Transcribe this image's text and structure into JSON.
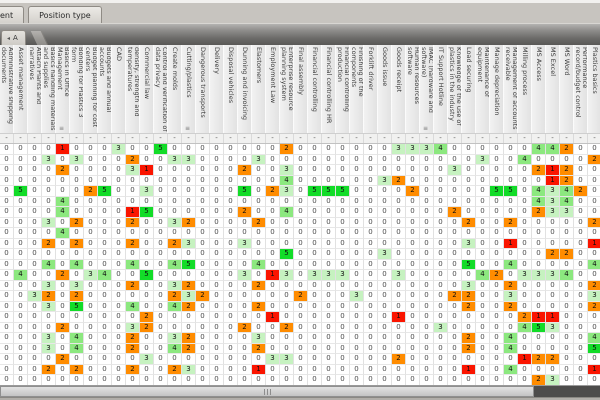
{
  "tabs": [
    {
      "label": "ent"
    },
    {
      "label": "Position type"
    }
  ],
  "corner_tab": {
    "icon": "◂",
    "label": "A"
  },
  "grid": {
    "columns": [
      "Administrative shipping documents",
      "Asset management",
      "Attach Plants and narratives",
      "Basics handling materials and supplies",
      "Basics in Office Management",
      "Bonding for Plastics 3 form",
      "Budget planning for cost centers",
      "Budgets and annual accounts",
      "CAD",
      "Chemical resistance, density, strength and temperatures",
      "Commercial law",
      "Control and verification of data privacy",
      "Create molds",
      "Cutting/plastics",
      "Dangerous transports",
      "Delivery",
      "Disposal vehicles",
      "Dunning and invoicing",
      "Elastomers",
      "Employment Law",
      "Enterprise resource planning system",
      "Final assembly",
      "Financial controlling",
      "Financial controlling HR",
      "Financial controlling production",
      "Finishing of the components",
      "Forklift driver",
      "Goods issue",
      "Goods receipt",
      "Human resources software",
      "IMAC (hardware and software)",
      "IT Support Hotline",
      "Knowledge of the use of plastics in the industry",
      "Load securing",
      "Maintenance of equipment",
      "Manage depreciation",
      "Management of accounts receivable",
      "Milling process",
      "MS Access",
      "MS Excel",
      "MS Word",
      "Performance record/budget control",
      "Plastics basics"
    ],
    "header_icon": "≡",
    "header_icon_columns": [
      4,
      13,
      30
    ],
    "filter_symbol": "-",
    "value_colors": {
      "0": "#ffffff",
      "1": "#fa1500",
      "2": "#ff8c00",
      "3": "#c6f2c0",
      "4": "#8ce87f",
      "5": "#12dc28"
    },
    "rows": [
      [
        0,
        0,
        0,
        0,
        1,
        0,
        0,
        0,
        3,
        0,
        0,
        5,
        0,
        0,
        0,
        0,
        0,
        0,
        0,
        0,
        2,
        0,
        0,
        0,
        0,
        0,
        0,
        0,
        3,
        3,
        3,
        4,
        0,
        0,
        0,
        0,
        0,
        0,
        4,
        4,
        2,
        0,
        0
      ],
      [
        0,
        0,
        0,
        3,
        0,
        3,
        0,
        0,
        0,
        2,
        0,
        0,
        3,
        3,
        0,
        0,
        0,
        0,
        3,
        0,
        0,
        0,
        0,
        0,
        0,
        0,
        0,
        0,
        0,
        0,
        0,
        0,
        0,
        0,
        3,
        0,
        0,
        4,
        0,
        0,
        0,
        0,
        2
      ],
      [
        0,
        0,
        0,
        0,
        2,
        0,
        0,
        0,
        0,
        3,
        1,
        0,
        0,
        0,
        0,
        0,
        0,
        2,
        0,
        0,
        3,
        0,
        0,
        0,
        0,
        0,
        0,
        0,
        0,
        0,
        0,
        0,
        3,
        0,
        0,
        0,
        0,
        0,
        2,
        1,
        2,
        0,
        0
      ],
      [
        0,
        0,
        0,
        0,
        0,
        0,
        0,
        0,
        0,
        0,
        0,
        0,
        0,
        0,
        0,
        0,
        0,
        0,
        0,
        0,
        4,
        0,
        0,
        0,
        0,
        0,
        0,
        3,
        2,
        0,
        0,
        0,
        0,
        0,
        0,
        0,
        0,
        0,
        0,
        1,
        2,
        0,
        0
      ],
      [
        0,
        5,
        0,
        0,
        0,
        0,
        2,
        5,
        0,
        0,
        3,
        0,
        0,
        0,
        0,
        0,
        0,
        5,
        0,
        2,
        3,
        0,
        5,
        5,
        5,
        0,
        0,
        0,
        0,
        2,
        0,
        0,
        0,
        0,
        0,
        5,
        5,
        0,
        4,
        3,
        4,
        2,
        0
      ],
      [
        0,
        0,
        0,
        0,
        4,
        0,
        0,
        0,
        0,
        0,
        0,
        0,
        0,
        0,
        0,
        0,
        0,
        0,
        0,
        0,
        0,
        0,
        0,
        0,
        0,
        0,
        0,
        0,
        0,
        0,
        0,
        0,
        0,
        0,
        0,
        0,
        0,
        0,
        4,
        3,
        4,
        0,
        0
      ],
      [
        0,
        0,
        0,
        0,
        4,
        0,
        0,
        0,
        0,
        1,
        5,
        0,
        0,
        0,
        0,
        0,
        0,
        2,
        0,
        0,
        4,
        0,
        0,
        0,
        0,
        0,
        0,
        0,
        0,
        0,
        0,
        0,
        2,
        0,
        0,
        0,
        0,
        0,
        2,
        3,
        3,
        0,
        0
      ],
      [
        0,
        0,
        0,
        3,
        0,
        2,
        0,
        0,
        0,
        2,
        0,
        0,
        3,
        2,
        0,
        0,
        0,
        0,
        2,
        0,
        0,
        0,
        0,
        0,
        0,
        0,
        0,
        0,
        0,
        0,
        0,
        0,
        0,
        2,
        0,
        0,
        2,
        0,
        0,
        0,
        0,
        0,
        2
      ],
      [
        0,
        0,
        0,
        0,
        4,
        0,
        0,
        0,
        0,
        0,
        0,
        0,
        0,
        0,
        0,
        0,
        0,
        0,
        0,
        0,
        0,
        0,
        0,
        0,
        0,
        0,
        0,
        0,
        0,
        0,
        0,
        0,
        0,
        0,
        0,
        0,
        0,
        0,
        0,
        0,
        0,
        0,
        0
      ],
      [
        0,
        0,
        0,
        2,
        0,
        2,
        0,
        0,
        0,
        2,
        0,
        0,
        2,
        3,
        0,
        0,
        0,
        3,
        0,
        0,
        0,
        0,
        0,
        0,
        0,
        0,
        0,
        0,
        0,
        0,
        0,
        0,
        0,
        3,
        0,
        0,
        1,
        0,
        0,
        0,
        0,
        0,
        1
      ],
      [
        0,
        0,
        0,
        0,
        0,
        0,
        0,
        0,
        0,
        0,
        0,
        0,
        0,
        0,
        0,
        0,
        0,
        0,
        0,
        0,
        5,
        0,
        0,
        0,
        0,
        0,
        0,
        3,
        0,
        0,
        0,
        0,
        0,
        0,
        0,
        0,
        0,
        0,
        0,
        2,
        2,
        0,
        0
      ],
      [
        0,
        0,
        0,
        4,
        0,
        4,
        0,
        0,
        0,
        4,
        0,
        0,
        4,
        5,
        0,
        0,
        0,
        0,
        4,
        0,
        0,
        0,
        0,
        0,
        0,
        0,
        0,
        0,
        0,
        0,
        0,
        0,
        0,
        5,
        0,
        0,
        4,
        0,
        0,
        0,
        0,
        0,
        4
      ],
      [
        0,
        4,
        0,
        0,
        2,
        0,
        3,
        4,
        0,
        0,
        5,
        0,
        0,
        0,
        0,
        0,
        0,
        3,
        0,
        1,
        3,
        0,
        3,
        3,
        3,
        0,
        0,
        0,
        3,
        0,
        0,
        0,
        0,
        0,
        4,
        2,
        0,
        3,
        3,
        3,
        4,
        0,
        0
      ],
      [
        0,
        0,
        0,
        3,
        0,
        3,
        0,
        0,
        0,
        2,
        0,
        0,
        3,
        2,
        0,
        0,
        0,
        0,
        2,
        0,
        0,
        0,
        0,
        0,
        0,
        0,
        0,
        0,
        0,
        0,
        0,
        0,
        0,
        3,
        0,
        0,
        2,
        0,
        0,
        0,
        0,
        0,
        2
      ],
      [
        0,
        0,
        3,
        2,
        0,
        2,
        0,
        0,
        0,
        0,
        0,
        0,
        2,
        3,
        2,
        0,
        0,
        0,
        0,
        0,
        0,
        2,
        0,
        0,
        0,
        3,
        0,
        0,
        0,
        0,
        0,
        0,
        2,
        2,
        0,
        0,
        3,
        0,
        0,
        0,
        0,
        0,
        3
      ],
      [
        0,
        0,
        0,
        3,
        0,
        5,
        0,
        0,
        0,
        4,
        0,
        0,
        4,
        2,
        0,
        0,
        0,
        0,
        2,
        0,
        0,
        0,
        0,
        0,
        0,
        0,
        0,
        0,
        0,
        0,
        0,
        0,
        0,
        2,
        0,
        0,
        2,
        0,
        0,
        0,
        0,
        0,
        2
      ],
      [
        0,
        0,
        0,
        0,
        0,
        0,
        0,
        0,
        0,
        0,
        2,
        0,
        0,
        0,
        0,
        0,
        0,
        0,
        0,
        1,
        0,
        0,
        0,
        0,
        0,
        0,
        0,
        0,
        1,
        0,
        0,
        0,
        0,
        0,
        0,
        0,
        0,
        2,
        1,
        1,
        0,
        0,
        0
      ],
      [
        0,
        0,
        0,
        0,
        2,
        0,
        0,
        0,
        0,
        3,
        2,
        0,
        0,
        0,
        0,
        0,
        0,
        2,
        0,
        0,
        2,
        0,
        0,
        0,
        0,
        0,
        0,
        0,
        0,
        0,
        0,
        3,
        0,
        0,
        0,
        0,
        0,
        4,
        5,
        3,
        0,
        0,
        0
      ],
      [
        0,
        0,
        0,
        3,
        0,
        4,
        0,
        0,
        0,
        2,
        0,
        0,
        3,
        2,
        0,
        0,
        0,
        0,
        3,
        0,
        0,
        0,
        0,
        0,
        0,
        0,
        0,
        0,
        0,
        0,
        0,
        0,
        0,
        2,
        0,
        0,
        4,
        0,
        0,
        0,
        0,
        0,
        4
      ],
      [
        0,
        0,
        0,
        3,
        0,
        4,
        0,
        0,
        0,
        2,
        0,
        0,
        4,
        2,
        0,
        0,
        0,
        0,
        2,
        0,
        0,
        0,
        0,
        0,
        0,
        0,
        0,
        0,
        0,
        0,
        0,
        0,
        0,
        2,
        0,
        0,
        4,
        0,
        0,
        0,
        0,
        0,
        5
      ],
      [
        0,
        0,
        0,
        0,
        2,
        0,
        0,
        0,
        0,
        0,
        3,
        0,
        0,
        0,
        0,
        0,
        0,
        0,
        0,
        3,
        3,
        0,
        0,
        0,
        0,
        0,
        0,
        0,
        2,
        0,
        0,
        0,
        0,
        0,
        0,
        0,
        0,
        1,
        2,
        2,
        0,
        0,
        0
      ],
      [
        0,
        0,
        0,
        2,
        0,
        2,
        0,
        0,
        0,
        2,
        0,
        0,
        2,
        3,
        0,
        0,
        0,
        0,
        1,
        0,
        0,
        0,
        0,
        0,
        0,
        0,
        0,
        0,
        0,
        0,
        0,
        0,
        0,
        1,
        0,
        0,
        4,
        0,
        0,
        0,
        0,
        0,
        1
      ],
      [
        0,
        0,
        0,
        0,
        0,
        0,
        0,
        0,
        0,
        0,
        0,
        0,
        0,
        0,
        0,
        0,
        0,
        0,
        0,
        0,
        0,
        0,
        0,
        0,
        0,
        0,
        0,
        0,
        0,
        0,
        0,
        0,
        0,
        0,
        0,
        0,
        0,
        0,
        2,
        3,
        0,
        0,
        0
      ]
    ]
  }
}
